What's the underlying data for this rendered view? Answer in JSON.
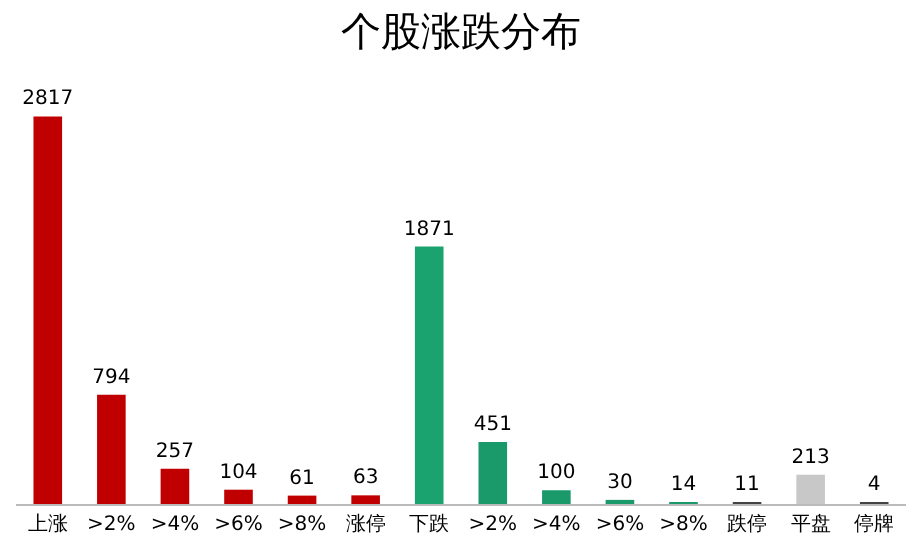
{
  "chart_data": {
    "type": "bar",
    "title": "个股涨跌分布",
    "categories": [
      "上涨",
      ">2%",
      ">4%",
      ">6%",
      ">8%",
      "涨停",
      "下跌",
      ">2%",
      ">4%",
      ">6%",
      ">8%",
      "跌停",
      "平盘",
      "停牌"
    ],
    "values": [
      2817,
      794,
      257,
      104,
      61,
      63,
      1871,
      451,
      100,
      30,
      14,
      11,
      213,
      4
    ],
    "colors": [
      "#c00000",
      "#c00000",
      "#c00000",
      "#c00000",
      "#c00000",
      "#c00000",
      "#1aa36e",
      "#1a9a6a",
      "#1a9a6a",
      "#1a9a6a",
      "#1a9a6a",
      "#444444",
      "#c8c8c8",
      "#444444"
    ],
    "data_labels": true,
    "legend": false
  }
}
